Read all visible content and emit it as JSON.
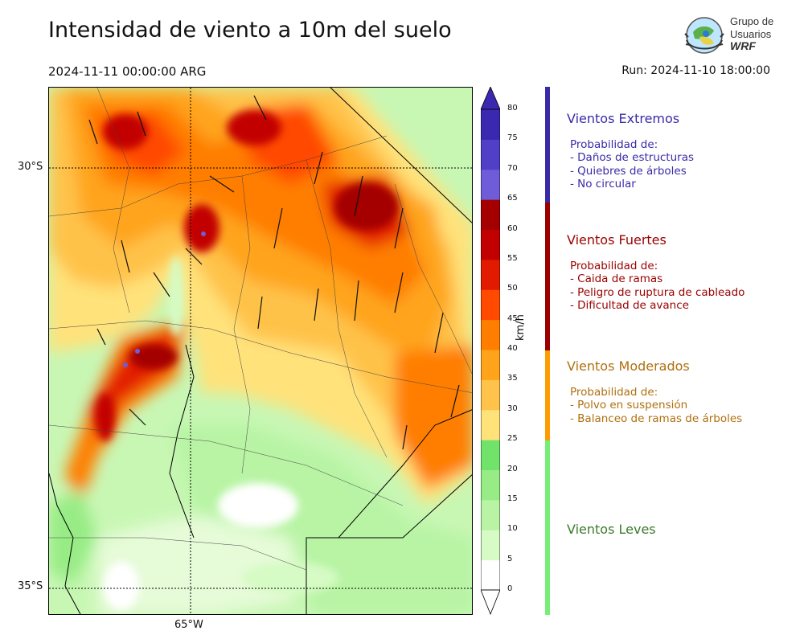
{
  "header": {
    "title": "Intensidad de viento a 10m del suelo",
    "valid_time": "2024-11-11 00:00:00 ARG",
    "run_time": "Run: 2024-11-10 18:00:00"
  },
  "logo": {
    "line1": "Grupo de",
    "line2": "Usuarios",
    "line3": "WRF"
  },
  "map": {
    "lat_labels": [
      "30°S",
      "35°S"
    ],
    "lon_labels": [
      "65°W"
    ]
  },
  "colorbar": {
    "unit": "km/h",
    "ticks": [
      "0",
      "5",
      "10",
      "15",
      "20",
      "25",
      "30",
      "35",
      "40",
      "45",
      "50",
      "55",
      "60",
      "65",
      "70",
      "75",
      "80"
    ],
    "colors": [
      "#ffffff",
      "#d6fbc4",
      "#b8f4a4",
      "#97ec85",
      "#72e36a",
      "#ffe27a",
      "#ffc24a",
      "#ffa41a",
      "#ff7e00",
      "#ff4a00",
      "#e21a00",
      "#c20000",
      "#a40000",
      "#6e5cd8",
      "#5040c8",
      "#3a28b0"
    ]
  },
  "legend": {
    "categories": [
      {
        "name": "Vientos Extremos",
        "color": "#3a2aa8",
        "heading": "Probabilidad de:",
        "items": [
          "- Daños de estructuras",
          "- Quiebres de árboles",
          "- No circular"
        ]
      },
      {
        "name": "Vientos Fuertes",
        "color": "#9a0000",
        "heading": "Probabilidad de:",
        "items": [
          "- Caida de ramas",
          "- Peligro de ruptura de cableado",
          "- Dificultad de avance"
        ]
      },
      {
        "name": "Vientos Moderados",
        "color": "#b07010",
        "heading": "Probabilidad de:",
        "items": [
          "- Polvo en suspensión",
          "- Balanceo de ramas de árboles"
        ]
      },
      {
        "name": "Vientos Leves",
        "color": "#3a7a2a",
        "heading": "",
        "items": []
      }
    ],
    "band_colors": [
      "#3a2aa8",
      "#9a0000",
      "#ff9c00",
      "#77ee77"
    ]
  }
}
